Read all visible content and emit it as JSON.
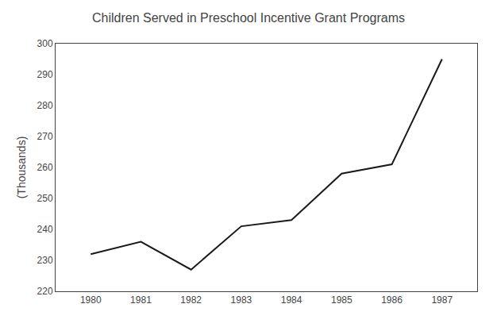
{
  "chart_data": {
    "type": "line",
    "title": "Children Served in Preschool Incentive Grant Programs",
    "ylabel": "(Thousands)",
    "x": [
      1980,
      1981,
      1982,
      1983,
      1984,
      1985,
      1986,
      1987
    ],
    "values": [
      232,
      236,
      227,
      241,
      243,
      258,
      261,
      295
    ],
    "color": "#1a1a1a",
    "xlim": [
      1979.3,
      1987.7
    ],
    "xticks": [
      1980,
      1981,
      1982,
      1983,
      1984,
      1985,
      1986,
      1987
    ],
    "ylim": [
      220,
      300
    ],
    "yticks": [
      220,
      230,
      240,
      250,
      260,
      270,
      280,
      290,
      300
    ],
    "grid": false
  }
}
